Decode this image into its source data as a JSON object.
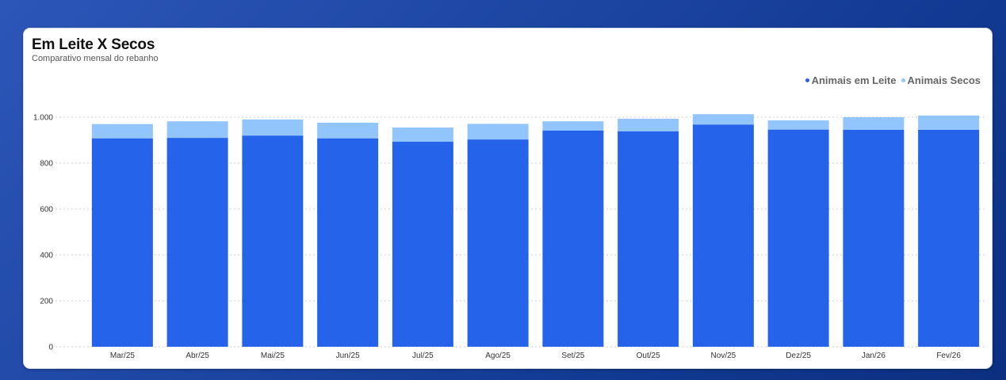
{
  "header": {
    "title": "Em Leite X Secos",
    "subtitle": "Comparativo mensal do rebanho"
  },
  "legend": [
    {
      "label": "Animais em Leite",
      "color": "#2563eb"
    },
    {
      "label": "Animais Secos",
      "color": "#93c5fd"
    }
  ],
  "chart_data": {
    "type": "bar",
    "stacked": true,
    "title": "Em Leite X Secos",
    "subtitle": "Comparativo mensal do rebanho",
    "xlabel": "",
    "ylabel": "",
    "ylim": [
      0,
      1000
    ],
    "yticks": [
      0,
      200,
      400,
      600,
      800,
      1000
    ],
    "ytick_labels": [
      "0",
      "200",
      "400",
      "600",
      "800",
      "1.000"
    ],
    "grid": "horizontal dotted",
    "legend_position": "top-right",
    "categories": [
      "Mar/25",
      "Abr/25",
      "Mai/25",
      "Jun/25",
      "Jul/25",
      "Ago/25",
      "Set/25",
      "Out/25",
      "Nov/25",
      "Dez/25",
      "Jan/26",
      "Fev/26"
    ],
    "series": [
      {
        "name": "Animais em Leite",
        "color": "#2563eb",
        "values": [
          908,
          910,
          920,
          908,
          893,
          903,
          942,
          938,
          968,
          946,
          945,
          945
        ]
      },
      {
        "name": "Animais Secos",
        "color": "#93c5fd",
        "values": [
          62,
          72,
          70,
          68,
          62,
          68,
          40,
          55,
          45,
          40,
          55,
          62
        ]
      }
    ]
  }
}
